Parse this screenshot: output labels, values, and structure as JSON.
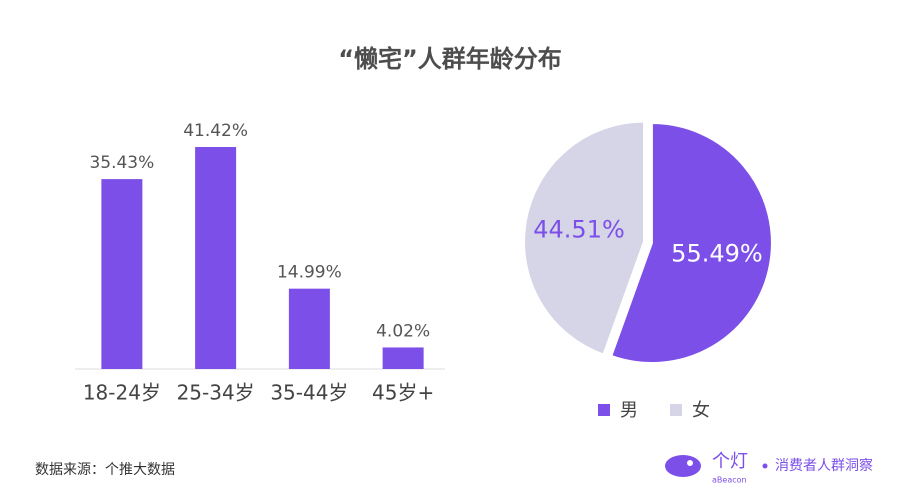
{
  "title": "“懒宅”人群年龄分布",
  "chart_data": [
    {
      "type": "bar",
      "categories": [
        "18-24岁",
        "25-34岁",
        "35-44岁",
        "45岁+"
      ],
      "values": [
        35.43,
        41.42,
        14.99,
        4.02
      ],
      "value_labels": [
        "35.43%",
        "41.42%",
        "14.99%",
        "4.02%"
      ],
      "color": "#7b4fe8"
    },
    {
      "type": "pie",
      "categories": [
        "男",
        "女"
      ],
      "values": [
        55.49,
        44.51
      ],
      "value_labels": [
        "55.49%",
        "44.51%"
      ],
      "colors": [
        "#7b4fe8",
        "#d5d5e7"
      ],
      "label_colors": [
        "#ffffff",
        "#7b4fe8"
      ]
    }
  ],
  "source": "数据来源：个推大数据",
  "logo": {
    "name": "个灯",
    "sub": "aBeacon",
    "slogan": "消费者人群洞察"
  }
}
